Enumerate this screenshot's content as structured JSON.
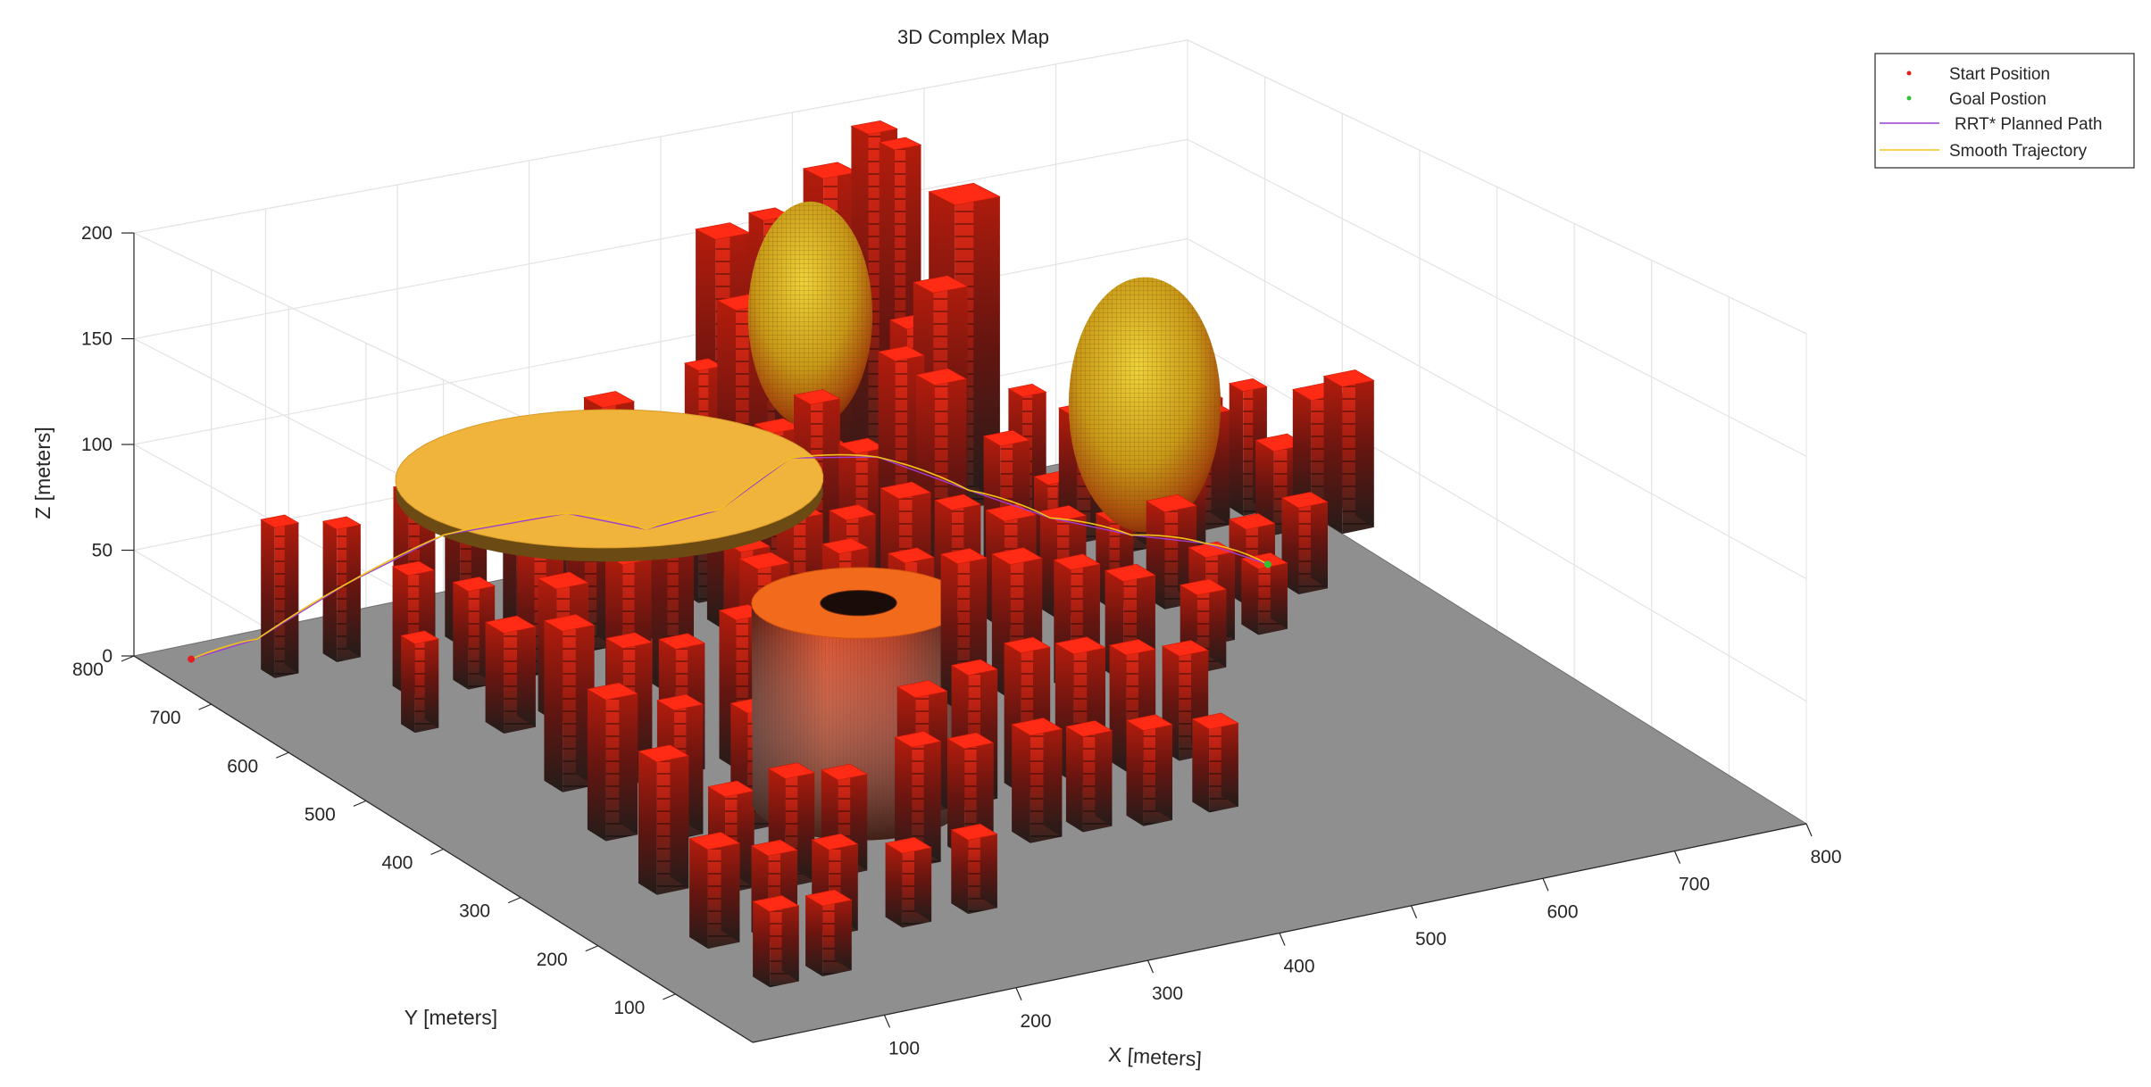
{
  "chart_data": {
    "type": "scatter",
    "title": "3D Complex Map",
    "xlabel": "X [meters]",
    "ylabel": "Y [meters]",
    "zlabel": "Z [meters]",
    "xlim": [
      0,
      800
    ],
    "ylim": [
      0,
      800
    ],
    "zlim": [
      0,
      200
    ],
    "x_ticks": [
      "100",
      "200",
      "300",
      "400",
      "500",
      "600",
      "700",
      "800"
    ],
    "y_ticks": [
      "100",
      "200",
      "300",
      "400",
      "500",
      "600",
      "700",
      "800"
    ],
    "z_ticks": [
      "0",
      "50",
      "100",
      "150",
      "200"
    ],
    "grid": true,
    "legend_position": "top-right",
    "legend": [
      {
        "label": "Start Position",
        "color": "#e02020",
        "marker": "dot"
      },
      {
        "label": "Goal Postion",
        "color": "#30c030",
        "marker": "dot"
      },
      {
        "label": "RRT* Planned Path",
        "color": "#9a3fd0",
        "marker": "line"
      },
      {
        "label": "Smooth Trajectory",
        "color": "#f2c21b",
        "marker": "line"
      }
    ],
    "start_position": {
      "x": 20,
      "y": 760,
      "z": 5
    },
    "goal_position": {
      "x": 720,
      "y": 560,
      "z": 5
    },
    "path": [
      {
        "x": 20,
        "y": 760,
        "z": 5
      },
      {
        "x": 70,
        "y": 760,
        "z": 8
      },
      {
        "x": 130,
        "y": 745,
        "z": 30
      },
      {
        "x": 200,
        "y": 740,
        "z": 45
      },
      {
        "x": 270,
        "y": 700,
        "z": 55
      },
      {
        "x": 330,
        "y": 700,
        "z": 40
      },
      {
        "x": 380,
        "y": 690,
        "z": 45
      },
      {
        "x": 440,
        "y": 700,
        "z": 60
      },
      {
        "x": 500,
        "y": 690,
        "z": 55
      },
      {
        "x": 540,
        "y": 640,
        "z": 45
      },
      {
        "x": 590,
        "y": 620,
        "z": 30
      },
      {
        "x": 640,
        "y": 600,
        "z": 20
      },
      {
        "x": 690,
        "y": 590,
        "z": 12
      },
      {
        "x": 720,
        "y": 560,
        "z": 5
      }
    ],
    "obstacles": {
      "disc": {
        "cx": 220,
        "cy": 560,
        "z": 105,
        "r": 140
      },
      "ellipsoids": [
        {
          "cx": 490,
          "cy": 760,
          "cz": 110,
          "rx": 45,
          "ry": 45,
          "rz": 55
        },
        {
          "cx": 650,
          "cy": 600,
          "cz": 80,
          "rx": 55,
          "ry": 55,
          "rz": 60
        }
      ],
      "hollow_cylinder": {
        "cx": 280,
        "cy": 340,
        "r": 70,
        "r_inner": 25,
        "h": 85
      },
      "buildings": [
        [
          60,
          720,
          18,
          70
        ],
        [
          110,
          725,
          18,
          62
        ],
        [
          150,
          700,
          20,
          78
        ],
        [
          195,
          710,
          20,
          85
        ],
        [
          235,
          705,
          18,
          88
        ],
        [
          270,
          700,
          24,
          90
        ],
        [
          300,
          705,
          24,
          100
        ],
        [
          330,
          710,
          24,
          80
        ],
        [
          370,
          700,
          18,
          110
        ],
        [
          410,
          720,
          24,
          130
        ],
        [
          430,
          780,
          26,
          150
        ],
        [
          455,
          760,
          20,
          160
        ],
        [
          500,
          760,
          26,
          175
        ],
        [
          540,
          770,
          22,
          190
        ],
        [
          560,
          770,
          20,
          180
        ],
        [
          540,
          720,
          22,
          105
        ],
        [
          560,
          720,
          26,
          120
        ],
        [
          600,
          760,
          34,
          150
        ],
        [
          610,
          690,
          18,
          70
        ],
        [
          640,
          670,
          24,
          60
        ],
        [
          700,
          700,
          24,
          55
        ],
        [
          740,
          690,
          22,
          50
        ],
        [
          760,
          660,
          18,
          60
        ],
        [
          800,
          640,
          24,
          55
        ],
        [
          660,
          640,
          18,
          40
        ],
        [
          690,
          620,
          18,
          35
        ],
        [
          720,
          650,
          24,
          55
        ],
        [
          760,
          620,
          24,
          40
        ],
        [
          800,
          600,
          24,
          70
        ],
        [
          120,
          650,
          20,
          55
        ],
        [
          160,
          640,
          20,
          45
        ],
        [
          210,
          640,
          22,
          55
        ],
        [
          260,
          660,
          22,
          65
        ],
        [
          300,
          660,
          22,
          70
        ],
        [
          360,
          650,
          22,
          80
        ],
        [
          390,
          640,
          22,
          90
        ],
        [
          420,
          640,
          22,
          100
        ],
        [
          440,
          660,
          24,
          70
        ],
        [
          460,
          650,
          22,
          70
        ],
        [
          490,
          650,
          22,
          110
        ],
        [
          520,
          650,
          24,
          95
        ],
        [
          570,
          650,
          22,
          60
        ],
        [
          600,
          640,
          18,
          40
        ],
        [
          90,
          590,
          18,
          40
        ],
        [
          140,
          560,
          24,
          45
        ],
        [
          180,
          560,
          24,
          60
        ],
        [
          230,
          560,
          22,
          65
        ],
        [
          270,
          570,
          20,
          85
        ],
        [
          320,
          560,
          22,
          60
        ],
        [
          360,
          560,
          22,
          70
        ],
        [
          400,
          560,
          22,
          65
        ],
        [
          440,
          560,
          24,
          70
        ],
        [
          480,
          560,
          22,
          60
        ],
        [
          520,
          560,
          24,
          50
        ],
        [
          560,
          560,
          22,
          45
        ],
        [
          600,
          560,
          18,
          40
        ],
        [
          630,
          540,
          24,
          45
        ],
        [
          680,
          520,
          22,
          35
        ],
        [
          720,
          520,
          22,
          40
        ],
        [
          120,
          450,
          24,
          70
        ],
        [
          160,
          440,
          22,
          60
        ],
        [
          200,
          440,
          22,
          55
        ],
        [
          240,
          430,
          22,
          65
        ],
        [
          280,
          470,
          24,
          75
        ],
        [
          330,
          450,
          22,
          80
        ],
        [
          380,
          450,
          22,
          70
        ],
        [
          420,
          450,
          22,
          65
        ],
        [
          460,
          450,
          24,
          60
        ],
        [
          500,
          440,
          22,
          55
        ],
        [
          540,
          440,
          24,
          45
        ],
        [
          590,
          430,
          22,
          35
        ],
        [
          620,
          470,
          22,
          40
        ],
        [
          660,
          470,
          22,
          30
        ],
        [
          100,
          360,
          24,
          60
        ],
        [
          140,
          340,
          22,
          55
        ],
        [
          190,
          330,
          22,
          50
        ],
        [
          300,
          300,
          24,
          50
        ],
        [
          340,
          300,
          22,
          55
        ],
        [
          380,
          300,
          22,
          60
        ],
        [
          420,
          300,
          24,
          55
        ],
        [
          460,
          300,
          22,
          50
        ],
        [
          500,
          300,
          22,
          45
        ],
        [
          80,
          260,
          24,
          55
        ],
        [
          120,
          240,
          22,
          40
        ],
        [
          160,
          230,
          22,
          45
        ],
        [
          200,
          230,
          22,
          40
        ],
        [
          250,
          220,
          22,
          50
        ],
        [
          290,
          220,
          22,
          45
        ],
        [
          340,
          220,
          24,
          45
        ],
        [
          380,
          220,
          22,
          40
        ],
        [
          420,
          210,
          22,
          40
        ],
        [
          470,
          210,
          22,
          35
        ],
        [
          60,
          160,
          24,
          40
        ],
        [
          100,
          150,
          22,
          35
        ],
        [
          140,
          140,
          22,
          35
        ],
        [
          190,
          130,
          22,
          30
        ],
        [
          240,
          130,
          22,
          30
        ],
        [
          60,
          80,
          22,
          30
        ],
        [
          100,
          80,
          22,
          28
        ]
      ]
    }
  }
}
